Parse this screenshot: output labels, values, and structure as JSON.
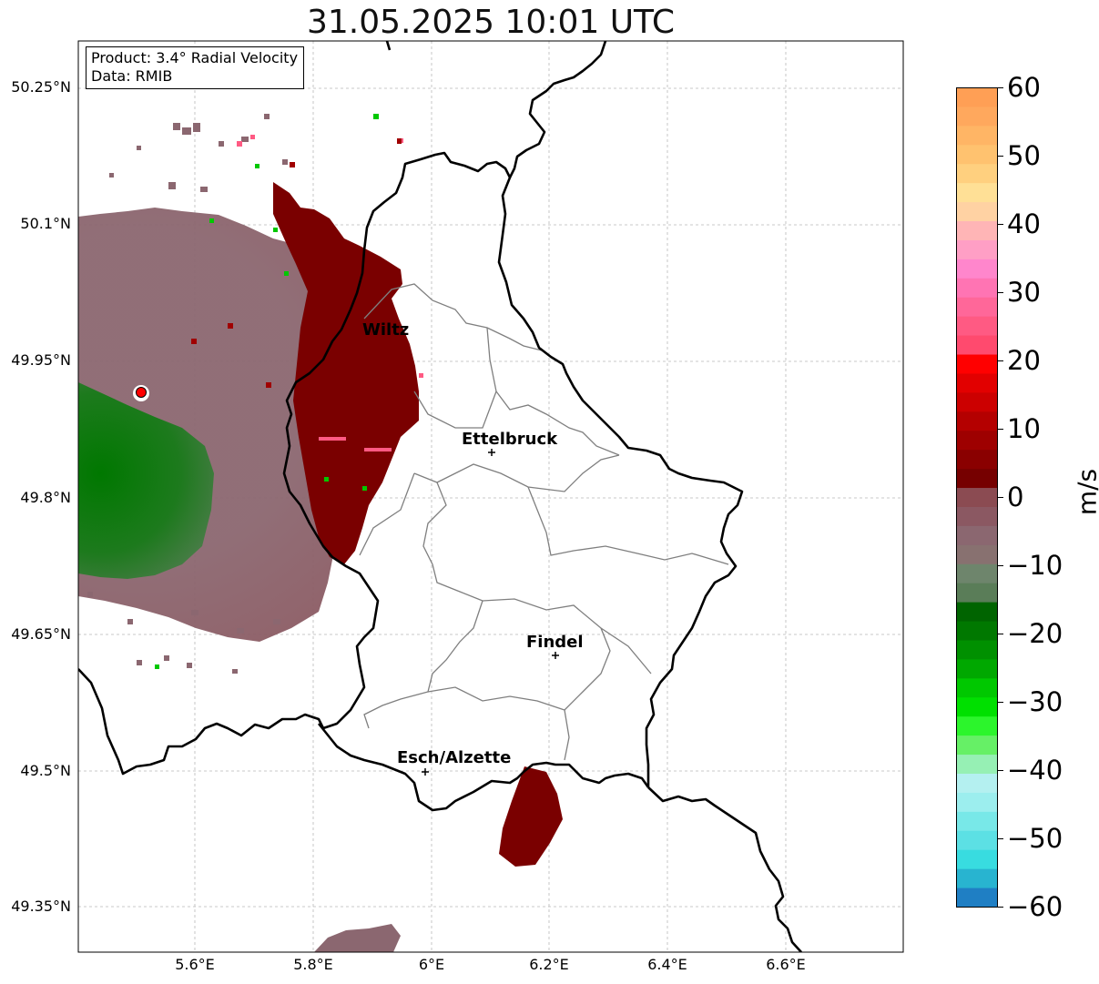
{
  "title": "31.05.2025 10:01 UTC",
  "info": {
    "product": "Product: 3.4° Radial Velocity",
    "data": "Data: RMIB"
  },
  "lat_labels": [
    "50.25°N",
    "50.1°N",
    "49.95°N",
    "49.8°N",
    "49.65°N",
    "49.5°N",
    "49.35°N"
  ],
  "lon_labels": [
    "5.6°E",
    "5.8°E",
    "6°E",
    "6.2°E",
    "6.4°E",
    "6.6°E"
  ],
  "cities": [
    {
      "name": "Wiltz",
      "lon": 5.93,
      "lat": 49.97
    },
    {
      "name": "Ettelbruck",
      "lon": 6.1,
      "lat": 49.85
    },
    {
      "name": "Findel",
      "lon": 6.21,
      "lat": 49.63
    },
    {
      "name": "Esch/Alzette",
      "lon": 5.99,
      "lat": 49.5
    }
  ],
  "radar_site": {
    "lon": 5.505,
    "lat": 49.915,
    "color": "#ff0000"
  },
  "map_extent": {
    "lon_min": 5.4,
    "lon_max": 6.8,
    "lat_min": 49.3,
    "lat_max": 50.3
  },
  "colorbar": {
    "label": "m/s",
    "ticks": [
      "60",
      "50",
      "40",
      "30",
      "20",
      "10",
      "0",
      "−10",
      "−20",
      "−30",
      "−40",
      "−50",
      "−60"
    ],
    "min": -60,
    "max": 60,
    "colors": [
      "#ff9f55",
      "#ffa85d",
      "#ffb565",
      "#ffc26f",
      "#ffd07f",
      "#ffe096",
      "#ffd2a3",
      "#ffb5b6",
      "#ff9fc5",
      "#ff86cc",
      "#ff74b3",
      "#ff6799",
      "#ff5a83",
      "#ff4a6e",
      "#ff0000",
      "#e20000",
      "#cc0000",
      "#b40000",
      "#9e0000",
      "#8a0000",
      "#760000",
      "#8b4b52",
      "#8b5862",
      "#8b6770",
      "#887170",
      "#6e856c",
      "#5a7d58",
      "#006400",
      "#007800",
      "#009000",
      "#00a800",
      "#00c800",
      "#00e000",
      "#2cf52c",
      "#66f066",
      "#96f0b4",
      "#b4f0f0",
      "#9ceeee",
      "#78e8e8",
      "#5ce0e4",
      "#38dce0",
      "#28b4d0",
      "#1f7fc4"
    ],
    "dominant_colors": {
      "outbound": "#7a0000",
      "neutral": "#8b6770",
      "inbound": "#007800"
    }
  }
}
